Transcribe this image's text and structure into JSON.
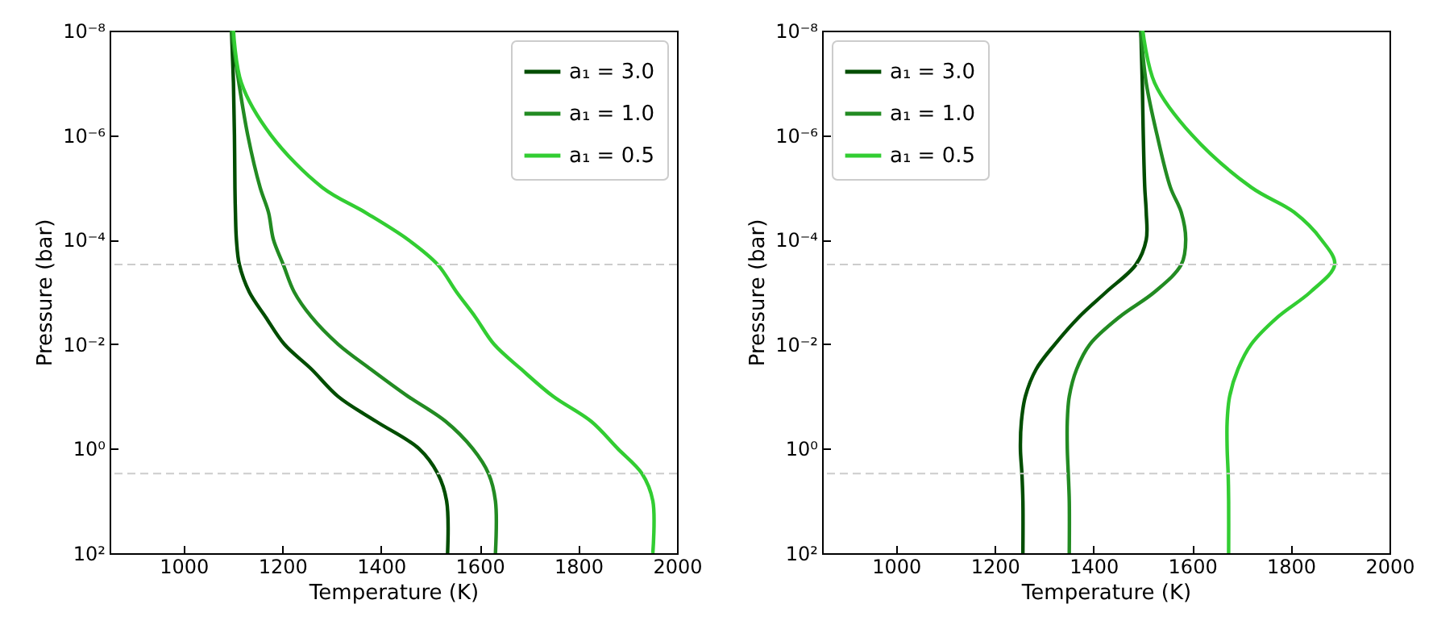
{
  "chart_data": [
    {
      "type": "line",
      "xlabel": "Temperature (K)",
      "ylabel": "Pressure (bar)",
      "log": "y",
      "xlim": [
        850,
        2000
      ],
      "xticks": [
        1000,
        1200,
        1400,
        1600,
        1800,
        2000
      ],
      "ylim": [
        100,
        1e-08
      ],
      "yticks": [
        {
          "value": 1e-08,
          "label": "10⁻⁸"
        },
        {
          "value": 1e-06,
          "label": "10⁻⁶"
        },
        {
          "value": 0.0001,
          "label": "10⁻⁴"
        },
        {
          "value": 0.01,
          "label": "10⁻²"
        },
        {
          "value": 1,
          "label": "10⁰"
        },
        {
          "value": 100,
          "label": "10²"
        }
      ],
      "legend": "top right",
      "ref_lines": [
        {
          "axis": "y",
          "value": 0.0003,
          "color": "#cccccc",
          "line_style": "dashed"
        },
        {
          "axis": "y",
          "value": 3,
          "color": "#cccccc",
          "line_style": "dashed"
        }
      ],
      "series": [
        {
          "name": "a₁ = 3.0",
          "color": "#004d00",
          "x": [
            1097,
            1101,
            1103,
            1104,
            1105,
            1107,
            1113,
            1133,
            1166,
            1204,
            1259,
            1313,
            1390,
            1477,
            1515,
            1533,
            1535
          ],
          "values": [
            1e-08,
            1e-07,
            1e-06,
            1e-05,
            3e-05,
            0.0001,
            0.0003,
            0.001,
            0.003,
            0.01,
            0.03,
            0.1,
            0.3,
            1,
            3,
            10,
            100
          ]
        },
        {
          "name": "a₁ = 1.0",
          "color": "#228b22",
          "x": [
            1097,
            1112,
            1130,
            1155,
            1172,
            1182,
            1202,
            1224,
            1259,
            1313,
            1379,
            1455,
            1531,
            1586,
            1618,
            1632,
            1632
          ],
          "values": [
            1e-08,
            1e-07,
            1e-06,
            1e-05,
            3e-05,
            0.0001,
            0.0003,
            0.001,
            0.003,
            0.01,
            0.03,
            0.1,
            0.3,
            1,
            3,
            10,
            100
          ]
        },
        {
          "name": "a₁ = 0.5",
          "color": "#32cd32",
          "x": [
            1101,
            1117,
            1177,
            1281,
            1368,
            1455,
            1515,
            1553,
            1591,
            1629,
            1684,
            1749,
            1826,
            1880,
            1929,
            1951,
            1951
          ],
          "values": [
            1e-08,
            1e-07,
            1e-06,
            1e-05,
            3e-05,
            0.0001,
            0.0003,
            0.001,
            0.003,
            0.01,
            0.03,
            0.1,
            0.3,
            1,
            3,
            10,
            100
          ]
        }
      ]
    },
    {
      "type": "line",
      "xlabel": "Temperature (K)",
      "ylabel": "Pressure (bar)",
      "log": "y",
      "xlim": [
        850,
        2000
      ],
      "xticks": [
        1000,
        1200,
        1400,
        1600,
        1800,
        2000
      ],
      "ylim": [
        100,
        1e-08
      ],
      "yticks": [
        {
          "value": 1e-08,
          "label": "10⁻⁸"
        },
        {
          "value": 1e-06,
          "label": "10⁻⁶"
        },
        {
          "value": 0.0001,
          "label": "10⁻⁴"
        },
        {
          "value": 0.01,
          "label": "10⁻²"
        },
        {
          "value": 1,
          "label": "10⁰"
        },
        {
          "value": 100,
          "label": "10²"
        }
      ],
      "legend": "top left",
      "ref_lines": [
        {
          "axis": "y",
          "value": 0.0003,
          "color": "#cccccc",
          "line_style": "dashed"
        },
        {
          "axis": "y",
          "value": 3,
          "color": "#cccccc",
          "line_style": "dashed"
        }
      ],
      "series": [
        {
          "name": "a₁ = 3.0",
          "color": "#004d00",
          "x": [
            1496,
            1499,
            1501,
            1504,
            1507,
            1507,
            1486,
            1426,
            1371,
            1322,
            1284,
            1262,
            1254,
            1252,
            1255,
            1257,
            1257
          ],
          "values": [
            1e-08,
            1e-07,
            1e-06,
            1e-05,
            3e-05,
            0.0001,
            0.0003,
            0.001,
            0.003,
            0.01,
            0.03,
            0.1,
            0.3,
            1,
            3,
            10,
            100
          ]
        },
        {
          "name": "a₁ = 1.0",
          "color": "#228b22",
          "x": [
            1496,
            1507,
            1529,
            1556,
            1578,
            1587,
            1578,
            1524,
            1453,
            1393,
            1366,
            1351,
            1347,
            1347,
            1349,
            1351,
            1351
          ],
          "values": [
            1e-08,
            1e-07,
            1e-06,
            1e-05,
            3e-05,
            0.0001,
            0.0003,
            0.001,
            0.003,
            0.01,
            0.03,
            0.1,
            0.3,
            1,
            3,
            10,
            100
          ]
        },
        {
          "name": "a₁ = 0.5",
          "color": "#32cd32",
          "x": [
            1500,
            1524,
            1600,
            1720,
            1807,
            1862,
            1889,
            1840,
            1774,
            1720,
            1693,
            1676,
            1671,
            1671,
            1673,
            1674,
            1674
          ],
          "values": [
            1e-08,
            1e-07,
            1e-06,
            1e-05,
            3e-05,
            0.0001,
            0.0003,
            0.001,
            0.003,
            0.01,
            0.03,
            0.1,
            0.3,
            1,
            3,
            10,
            100
          ]
        }
      ]
    }
  ]
}
